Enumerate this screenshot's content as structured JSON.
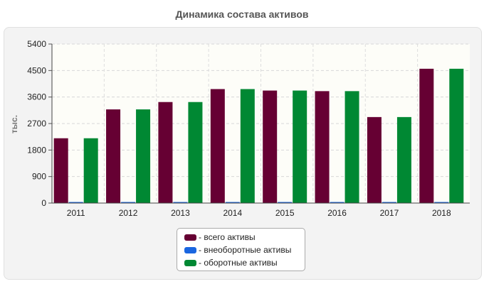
{
  "chart_data": {
    "type": "bar",
    "title": "Динамика состава активов",
    "xlabel": "",
    "ylabel": "тыс.",
    "ylim": [
      0,
      5400
    ],
    "yticks": [
      "0",
      "900",
      "1800",
      "2700",
      "3600",
      "4500",
      "5400"
    ],
    "categories": [
      "2011",
      "2012",
      "2013",
      "2014",
      "2015",
      "2016",
      "2017",
      "2018"
    ],
    "series": [
      {
        "name": "- всего активы",
        "color": "#660033",
        "values": [
          2200,
          3180,
          3430,
          3870,
          3820,
          3800,
          2920,
          4560
        ]
      },
      {
        "name": "- внеоборотные активы",
        "color": "#1a66e0",
        "values": [
          20,
          20,
          20,
          20,
          20,
          20,
          20,
          20
        ]
      },
      {
        "name": "- оборотные активы",
        "color": "#008833",
        "values": [
          2200,
          3180,
          3430,
          3870,
          3820,
          3800,
          2920,
          4560
        ]
      }
    ],
    "grid": true,
    "legend": "bottom-center"
  }
}
